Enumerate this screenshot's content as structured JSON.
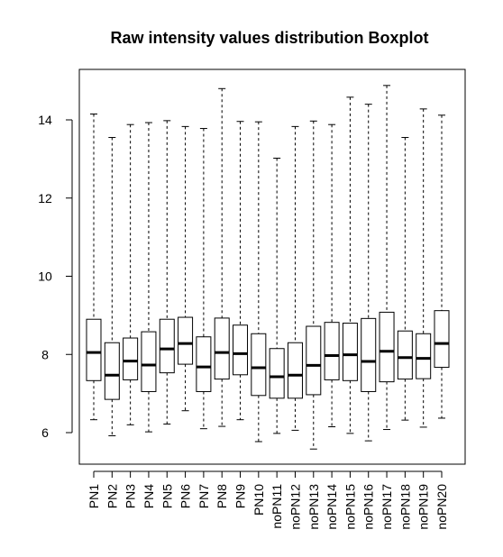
{
  "chart_data": {
    "type": "boxplot",
    "title": "Raw intensity values distribution Boxplot",
    "xlabel": "",
    "ylabel": "",
    "ylim": [
      5.2,
      15.3
    ],
    "yticks": [
      6,
      8,
      10,
      12,
      14
    ],
    "grid": false,
    "legend": "none",
    "categories": [
      "PN1",
      "PN2",
      "PN3",
      "PN4",
      "PN5",
      "PN6",
      "PN7",
      "PN8",
      "PN9",
      "PN10",
      "noPN11",
      "noPN12",
      "noPN13",
      "noPN14",
      "noPN15",
      "noPN16",
      "noPN17",
      "noPN18",
      "noPN19",
      "noPN20"
    ],
    "boxes": [
      {
        "min": 6.33,
        "q1": 7.33,
        "median": 8.05,
        "q3": 8.9,
        "max": 14.15
      },
      {
        "min": 5.92,
        "q1": 6.85,
        "median": 7.47,
        "q3": 8.3,
        "max": 13.55
      },
      {
        "min": 6.2,
        "q1": 7.35,
        "median": 7.83,
        "q3": 8.42,
        "max": 13.88
      },
      {
        "min": 6.02,
        "q1": 7.05,
        "median": 7.73,
        "q3": 8.58,
        "max": 13.93
      },
      {
        "min": 6.22,
        "q1": 7.53,
        "median": 8.14,
        "q3": 8.9,
        "max": 13.98
      },
      {
        "min": 6.56,
        "q1": 7.75,
        "median": 8.28,
        "q3": 8.95,
        "max": 13.83
      },
      {
        "min": 6.1,
        "q1": 7.05,
        "median": 7.68,
        "q3": 8.45,
        "max": 13.78
      },
      {
        "min": 6.16,
        "q1": 7.37,
        "median": 8.05,
        "q3": 8.93,
        "max": 14.8
      },
      {
        "min": 6.33,
        "q1": 7.48,
        "median": 8.02,
        "q3": 8.75,
        "max": 13.96
      },
      {
        "min": 5.77,
        "q1": 6.95,
        "median": 7.66,
        "q3": 8.53,
        "max": 13.95
      },
      {
        "min": 5.98,
        "q1": 6.88,
        "median": 7.43,
        "q3": 8.15,
        "max": 13.02
      },
      {
        "min": 6.06,
        "q1": 6.88,
        "median": 7.47,
        "q3": 8.3,
        "max": 13.83
      },
      {
        "min": 5.58,
        "q1": 6.97,
        "median": 7.72,
        "q3": 8.72,
        "max": 13.97
      },
      {
        "min": 6.15,
        "q1": 7.35,
        "median": 7.97,
        "q3": 8.82,
        "max": 13.88
      },
      {
        "min": 5.98,
        "q1": 7.33,
        "median": 7.99,
        "q3": 8.8,
        "max": 14.58
      },
      {
        "min": 5.79,
        "q1": 7.05,
        "median": 7.82,
        "q3": 8.92,
        "max": 14.4
      },
      {
        "min": 6.08,
        "q1": 7.3,
        "median": 8.08,
        "q3": 9.08,
        "max": 14.88
      },
      {
        "min": 6.32,
        "q1": 7.37,
        "median": 7.92,
        "q3": 8.6,
        "max": 13.55
      },
      {
        "min": 6.14,
        "q1": 7.38,
        "median": 7.9,
        "q3": 8.53,
        "max": 14.28
      },
      {
        "min": 6.37,
        "q1": 7.67,
        "median": 8.28,
        "q3": 9.12,
        "max": 14.12
      }
    ]
  }
}
